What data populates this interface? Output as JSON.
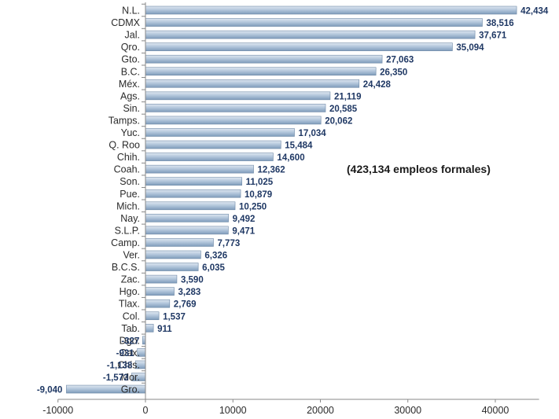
{
  "chart_data": {
    "type": "bar",
    "orientation": "horizontal",
    "categories": [
      "N.L.",
      "CDMX",
      "Jal.",
      "Qro.",
      "Gto.",
      "B.C.",
      "Méx.",
      "Ags.",
      "Sin.",
      "Tamps.",
      "Yuc.",
      "Q. Roo",
      "Chih.",
      "Coah.",
      "Son.",
      "Pue.",
      "Mich.",
      "Nay.",
      "S.L.P.",
      "Camp.",
      "Ver.",
      "B.C.S.",
      "Zac.",
      "Hgo.",
      "Tlax.",
      "Col.",
      "Tab.",
      "Dgo.",
      "Oax.",
      "Chis.",
      "Mor.",
      "Gro."
    ],
    "values": [
      42434,
      38516,
      37671,
      35094,
      27063,
      26350,
      24428,
      21119,
      20585,
      20062,
      17034,
      15484,
      14600,
      12362,
      11025,
      10879,
      10250,
      9492,
      9471,
      7773,
      6326,
      6035,
      3590,
      3283,
      2769,
      1537,
      911,
      -327,
      -931,
      -1138,
      -1573,
      -9040
    ],
    "value_labels": [
      "42,434",
      "38,516",
      "37,671",
      "35,094",
      "27,063",
      "26,350",
      "24,428",
      "21,119",
      "20,585",
      "20,062",
      "17,034",
      "15,484",
      "14,600",
      "12,362",
      "11,025",
      "10,879",
      "10,250",
      "9,492",
      "9,471",
      "7,773",
      "6,326",
      "6,035",
      "3,590",
      "3,283",
      "2,769",
      "1,537",
      "911",
      "-327",
      "-931",
      "-1,138",
      "-1,573",
      "-9,040"
    ],
    "annotation": "(423,134 empleos formales)",
    "xlim": [
      -10000,
      45000
    ],
    "x_ticks": [
      -10000,
      0,
      10000,
      20000,
      30000,
      40000
    ],
    "x_tick_labels": [
      "-10000",
      "0",
      "10000",
      "20000",
      "30000",
      "40000"
    ],
    "grid": false,
    "colors": {
      "bar_light": "#dfe7f1",
      "bar_mid": "#b4c7dc",
      "bar_dark": "#7f9cbb",
      "bar_edge": "#6d88a6",
      "value_label": "#1f3864",
      "axis": "#888888"
    }
  }
}
